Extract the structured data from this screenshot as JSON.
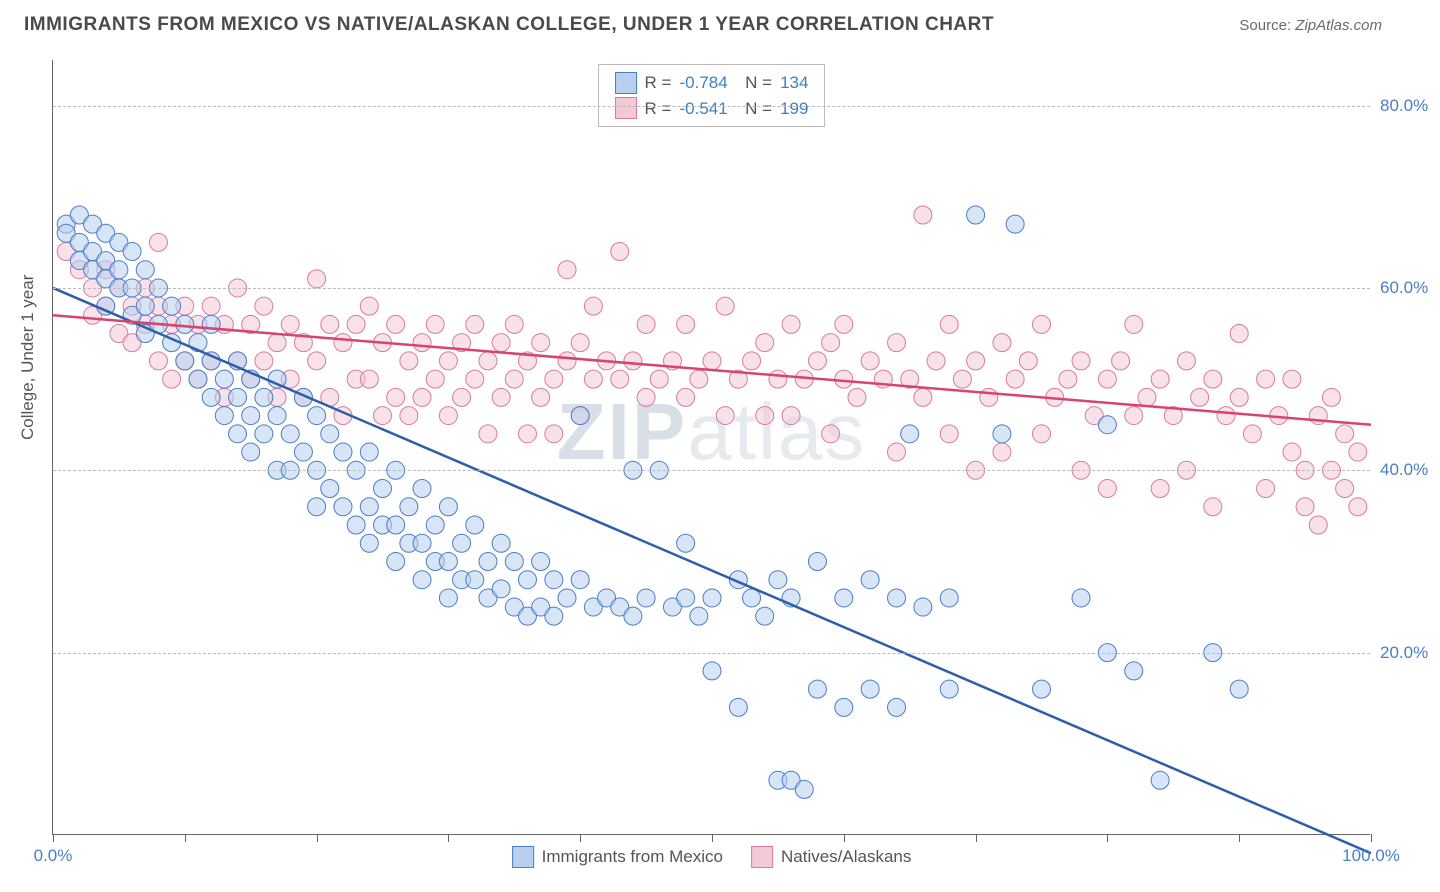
{
  "header": {
    "title": "IMMIGRANTS FROM MEXICO VS NATIVE/ALASKAN COLLEGE, UNDER 1 YEAR CORRELATION CHART",
    "source_prefix": "Source: ",
    "source_name": "ZipAtlas.com"
  },
  "chart": {
    "type": "scatter-with-regression",
    "ylabel": "College, Under 1 year",
    "watermark": "ZIPatlas",
    "background_color": "#ffffff",
    "grid_color": "#bbbbbb",
    "axis_color": "#666666",
    "tick_label_color": "#4a7ec7",
    "tick_fontsize": 17,
    "title_fontsize": 19,
    "xlim": [
      0,
      100
    ],
    "ylim": [
      0,
      85
    ],
    "yticks": [
      20,
      40,
      60,
      80
    ],
    "ytick_labels": [
      "20.0%",
      "40.0%",
      "60.0%",
      "80.0%"
    ],
    "xticks": [
      0,
      10,
      20,
      30,
      40,
      50,
      60,
      70,
      80,
      90,
      100
    ],
    "xtick_labels": {
      "0": "0.0%",
      "100": "100.0%"
    },
    "marker_radius": 9,
    "marker_opacity": 0.55,
    "line_width": 2.5,
    "series": [
      {
        "name": "Immigrants from Mexico",
        "color_fill": "#b8d0ee",
        "color_stroke": "#4a7ec7",
        "line_color": "#2d5fa8",
        "R": "-0.784",
        "N": "134",
        "regression": {
          "x1": 0,
          "y1": 60,
          "x2": 100,
          "y2": -2
        },
        "points": [
          [
            1,
            67
          ],
          [
            1,
            66
          ],
          [
            2,
            68
          ],
          [
            2,
            65
          ],
          [
            2,
            63
          ],
          [
            3,
            67
          ],
          [
            3,
            64
          ],
          [
            3,
            62
          ],
          [
            4,
            66
          ],
          [
            4,
            63
          ],
          [
            4,
            61
          ],
          [
            4,
            58
          ],
          [
            5,
            65
          ],
          [
            5,
            62
          ],
          [
            5,
            60
          ],
          [
            6,
            64
          ],
          [
            6,
            60
          ],
          [
            6,
            57
          ],
          [
            7,
            62
          ],
          [
            7,
            58
          ],
          [
            7,
            55
          ],
          [
            8,
            60
          ],
          [
            8,
            56
          ],
          [
            9,
            58
          ],
          [
            9,
            54
          ],
          [
            10,
            56
          ],
          [
            10,
            52
          ],
          [
            11,
            54
          ],
          [
            11,
            50
          ],
          [
            12,
            56
          ],
          [
            12,
            52
          ],
          [
            12,
            48
          ],
          [
            13,
            50
          ],
          [
            13,
            46
          ],
          [
            14,
            52
          ],
          [
            14,
            48
          ],
          [
            14,
            44
          ],
          [
            15,
            50
          ],
          [
            15,
            46
          ],
          [
            15,
            42
          ],
          [
            16,
            48
          ],
          [
            16,
            44
          ],
          [
            17,
            50
          ],
          [
            17,
            46
          ],
          [
            17,
            40
          ],
          [
            18,
            44
          ],
          [
            18,
            40
          ],
          [
            19,
            48
          ],
          [
            19,
            42
          ],
          [
            20,
            46
          ],
          [
            20,
            40
          ],
          [
            20,
            36
          ],
          [
            21,
            44
          ],
          [
            21,
            38
          ],
          [
            22,
            42
          ],
          [
            22,
            36
          ],
          [
            23,
            40
          ],
          [
            23,
            34
          ],
          [
            24,
            42
          ],
          [
            24,
            36
          ],
          [
            24,
            32
          ],
          [
            25,
            38
          ],
          [
            25,
            34
          ],
          [
            26,
            40
          ],
          [
            26,
            34
          ],
          [
            26,
            30
          ],
          [
            27,
            36
          ],
          [
            27,
            32
          ],
          [
            28,
            38
          ],
          [
            28,
            32
          ],
          [
            28,
            28
          ],
          [
            29,
            34
          ],
          [
            29,
            30
          ],
          [
            30,
            36
          ],
          [
            30,
            30
          ],
          [
            30,
            26
          ],
          [
            31,
            32
          ],
          [
            31,
            28
          ],
          [
            32,
            34
          ],
          [
            32,
            28
          ],
          [
            33,
            30
          ],
          [
            33,
            26
          ],
          [
            34,
            32
          ],
          [
            34,
            27
          ],
          [
            35,
            30
          ],
          [
            35,
            25
          ],
          [
            36,
            28
          ],
          [
            36,
            24
          ],
          [
            37,
            30
          ],
          [
            37,
            25
          ],
          [
            38,
            28
          ],
          [
            38,
            24
          ],
          [
            39,
            26
          ],
          [
            40,
            28
          ],
          [
            40,
            46
          ],
          [
            41,
            25
          ],
          [
            42,
            26
          ],
          [
            43,
            25
          ],
          [
            44,
            24
          ],
          [
            44,
            40
          ],
          [
            45,
            26
          ],
          [
            46,
            40
          ],
          [
            47,
            25
          ],
          [
            48,
            26
          ],
          [
            48,
            32
          ],
          [
            49,
            24
          ],
          [
            50,
            26
          ],
          [
            50,
            18
          ],
          [
            52,
            28
          ],
          [
            52,
            14
          ],
          [
            53,
            26
          ],
          [
            54,
            24
          ],
          [
            55,
            28
          ],
          [
            55,
            6
          ],
          [
            56,
            26
          ],
          [
            56,
            6
          ],
          [
            57,
            5
          ],
          [
            58,
            30
          ],
          [
            58,
            16
          ],
          [
            60,
            26
          ],
          [
            60,
            14
          ],
          [
            62,
            28
          ],
          [
            62,
            16
          ],
          [
            64,
            26
          ],
          [
            64,
            14
          ],
          [
            65,
            44
          ],
          [
            66,
            25
          ],
          [
            68,
            26
          ],
          [
            68,
            16
          ],
          [
            70,
            68
          ],
          [
            72,
            44
          ],
          [
            73,
            67
          ],
          [
            75,
            16
          ],
          [
            78,
            26
          ],
          [
            80,
            45
          ],
          [
            80,
            20
          ],
          [
            82,
            18
          ],
          [
            84,
            6
          ],
          [
            88,
            20
          ],
          [
            90,
            16
          ]
        ]
      },
      {
        "name": "Natives/Alaskans",
        "color_fill": "#f3c9d6",
        "color_stroke": "#d97ba0",
        "line_color": "#d6456f",
        "R": "-0.541",
        "N": "199",
        "regression": {
          "x1": 0,
          "y1": 57,
          "x2": 100,
          "y2": 45
        },
        "points": [
          [
            1,
            64
          ],
          [
            2,
            62
          ],
          [
            3,
            60
          ],
          [
            3,
            57
          ],
          [
            4,
            62
          ],
          [
            4,
            58
          ],
          [
            5,
            60
          ],
          [
            5,
            55
          ],
          [
            6,
            58
          ],
          [
            6,
            54
          ],
          [
            7,
            60
          ],
          [
            7,
            56
          ],
          [
            8,
            65
          ],
          [
            8,
            58
          ],
          [
            8,
            52
          ],
          [
            9,
            56
          ],
          [
            9,
            50
          ],
          [
            10,
            58
          ],
          [
            10,
            52
          ],
          [
            11,
            56
          ],
          [
            11,
            50
          ],
          [
            12,
            58
          ],
          [
            12,
            52
          ],
          [
            13,
            56
          ],
          [
            13,
            48
          ],
          [
            14,
            60
          ],
          [
            14,
            52
          ],
          [
            15,
            56
          ],
          [
            15,
            50
          ],
          [
            16,
            58
          ],
          [
            16,
            52
          ],
          [
            17,
            54
          ],
          [
            17,
            48
          ],
          [
            18,
            56
          ],
          [
            18,
            50
          ],
          [
            19,
            54
          ],
          [
            19,
            48
          ],
          [
            20,
            61
          ],
          [
            20,
            52
          ],
          [
            21,
            56
          ],
          [
            21,
            48
          ],
          [
            22,
            54
          ],
          [
            22,
            46
          ],
          [
            23,
            56
          ],
          [
            23,
            50
          ],
          [
            24,
            58
          ],
          [
            24,
            50
          ],
          [
            25,
            54
          ],
          [
            25,
            46
          ],
          [
            26,
            56
          ],
          [
            26,
            48
          ],
          [
            27,
            52
          ],
          [
            27,
            46
          ],
          [
            28,
            54
          ],
          [
            28,
            48
          ],
          [
            29,
            56
          ],
          [
            29,
            50
          ],
          [
            30,
            52
          ],
          [
            30,
            46
          ],
          [
            31,
            54
          ],
          [
            31,
            48
          ],
          [
            32,
            56
          ],
          [
            32,
            50
          ],
          [
            33,
            52
          ],
          [
            33,
            44
          ],
          [
            34,
            54
          ],
          [
            34,
            48
          ],
          [
            35,
            56
          ],
          [
            35,
            50
          ],
          [
            36,
            52
          ],
          [
            36,
            44
          ],
          [
            37,
            54
          ],
          [
            37,
            48
          ],
          [
            38,
            50
          ],
          [
            38,
            44
          ],
          [
            39,
            62
          ],
          [
            39,
            52
          ],
          [
            40,
            54
          ],
          [
            40,
            46
          ],
          [
            41,
            50
          ],
          [
            41,
            58
          ],
          [
            42,
            52
          ],
          [
            43,
            64
          ],
          [
            43,
            50
          ],
          [
            44,
            52
          ],
          [
            45,
            56
          ],
          [
            45,
            48
          ],
          [
            46,
            50
          ],
          [
            47,
            52
          ],
          [
            48,
            56
          ],
          [
            48,
            48
          ],
          [
            49,
            50
          ],
          [
            50,
            52
          ],
          [
            51,
            58
          ],
          [
            51,
            46
          ],
          [
            52,
            50
          ],
          [
            53,
            52
          ],
          [
            54,
            54
          ],
          [
            54,
            46
          ],
          [
            55,
            50
          ],
          [
            56,
            56
          ],
          [
            56,
            46
          ],
          [
            57,
            50
          ],
          [
            58,
            52
          ],
          [
            59,
            54
          ],
          [
            59,
            44
          ],
          [
            60,
            50
          ],
          [
            60,
            56
          ],
          [
            61,
            48
          ],
          [
            62,
            52
          ],
          [
            63,
            50
          ],
          [
            64,
            54
          ],
          [
            64,
            42
          ],
          [
            65,
            50
          ],
          [
            66,
            68
          ],
          [
            66,
            48
          ],
          [
            67,
            52
          ],
          [
            68,
            56
          ],
          [
            68,
            44
          ],
          [
            69,
            50
          ],
          [
            70,
            52
          ],
          [
            70,
            40
          ],
          [
            71,
            48
          ],
          [
            72,
            54
          ],
          [
            72,
            42
          ],
          [
            73,
            50
          ],
          [
            74,
            52
          ],
          [
            75,
            56
          ],
          [
            75,
            44
          ],
          [
            76,
            48
          ],
          [
            77,
            50
          ],
          [
            78,
            40
          ],
          [
            78,
            52
          ],
          [
            79,
            46
          ],
          [
            80,
            50
          ],
          [
            80,
            38
          ],
          [
            81,
            52
          ],
          [
            82,
            46
          ],
          [
            82,
            56
          ],
          [
            83,
            48
          ],
          [
            84,
            50
          ],
          [
            84,
            38
          ],
          [
            85,
            46
          ],
          [
            86,
            52
          ],
          [
            86,
            40
          ],
          [
            87,
            48
          ],
          [
            88,
            50
          ],
          [
            88,
            36
          ],
          [
            89,
            46
          ],
          [
            90,
            48
          ],
          [
            90,
            55
          ],
          [
            91,
            44
          ],
          [
            92,
            50
          ],
          [
            92,
            38
          ],
          [
            93,
            46
          ],
          [
            94,
            42
          ],
          [
            94,
            50
          ],
          [
            95,
            40
          ],
          [
            95,
            36
          ],
          [
            96,
            46
          ],
          [
            96,
            34
          ],
          [
            97,
            48
          ],
          [
            97,
            40
          ],
          [
            98,
            38
          ],
          [
            98,
            44
          ],
          [
            99,
            36
          ],
          [
            99,
            42
          ]
        ]
      }
    ]
  },
  "legend": {
    "items": [
      {
        "label": "Immigrants from Mexico",
        "fill": "#b8d0ee",
        "stroke": "#4a7ec7"
      },
      {
        "label": "Natives/Alaskans",
        "fill": "#f3c9d6",
        "stroke": "#d97ba0"
      }
    ]
  }
}
